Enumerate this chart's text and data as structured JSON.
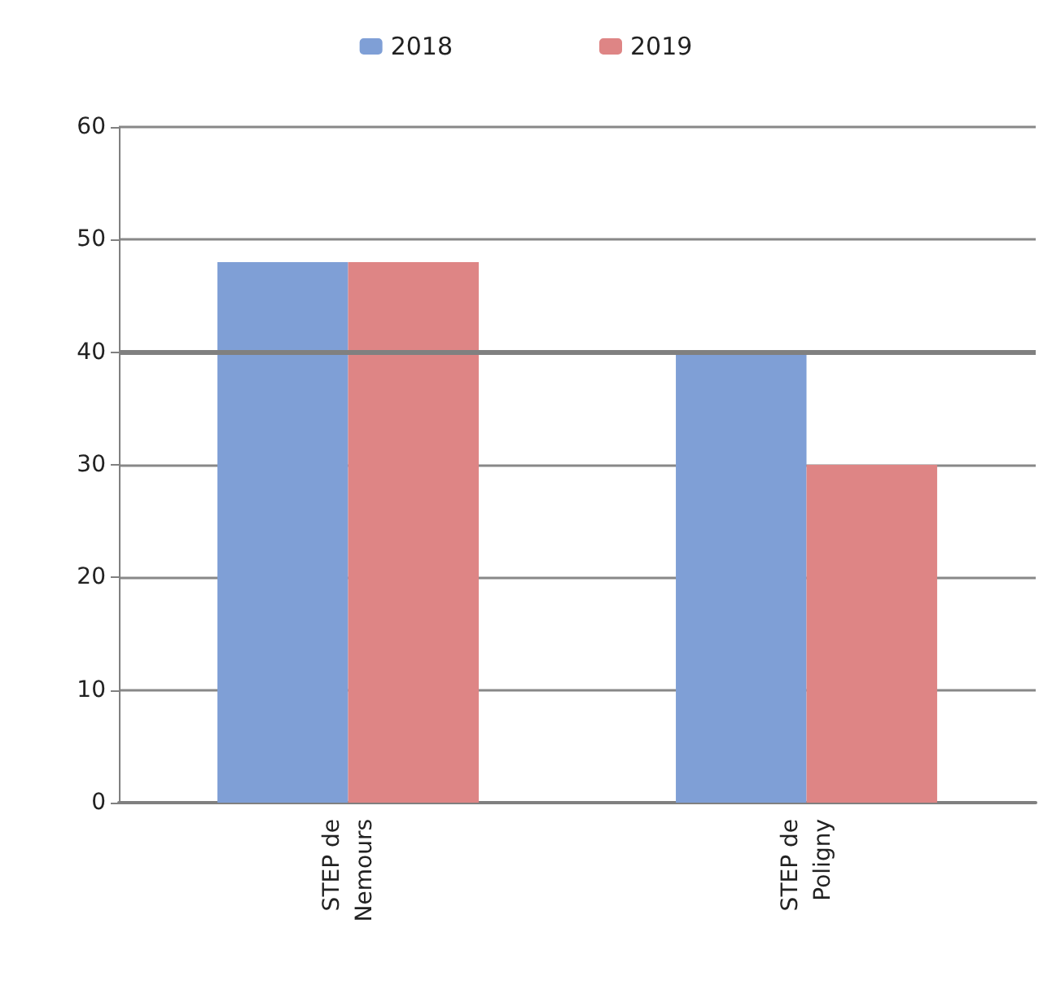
{
  "chart_data": {
    "type": "bar",
    "categories": [
      "STEP de Nemours",
      "STEP de Poligny"
    ],
    "series": [
      {
        "name": "2018",
        "color": "#7f9fd6",
        "values": [
          48,
          40
        ]
      },
      {
        "name": "2019",
        "color": "#de8585",
        "values": [
          48,
          30
        ]
      }
    ],
    "ylim": [
      0,
      60
    ],
    "yticks": [
      0,
      10,
      20,
      30,
      40,
      50,
      60
    ],
    "grid": "y",
    "legend": "top",
    "ref_lines": [
      {
        "axis": "y",
        "value": 40,
        "color": "#808080"
      }
    ]
  }
}
